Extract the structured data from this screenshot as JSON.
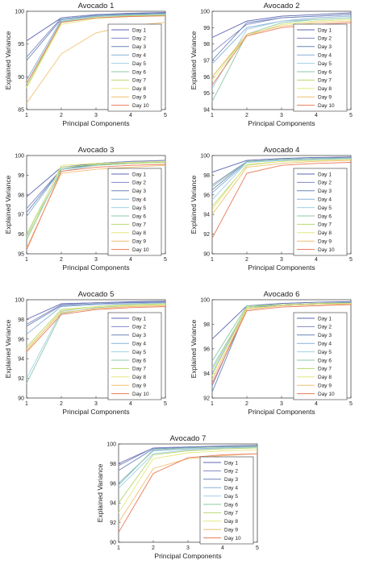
{
  "series_names": [
    "Day 1",
    "Day 2",
    "Day 3",
    "Day 4",
    "Day 5",
    "Day 6",
    "Day 7",
    "Day 8",
    "Day 9",
    "Day 10"
  ],
  "series_colors": [
    "#5c64b0",
    "#8088c4",
    "#6a86b8",
    "#88b0d8",
    "#9fd0e4",
    "#8cc8a4",
    "#b6d870",
    "#e4e880",
    "#f0c070",
    "#e87a5a"
  ],
  "chart_data": [
    {
      "type": "line",
      "title": "Avocado 1",
      "xlabel": "Principal Components",
      "ylabel": "Explained Variance",
      "x": [
        1,
        2,
        3,
        4,
        5
      ],
      "xlim": [
        1,
        5
      ],
      "ylim": [
        85,
        100
      ],
      "yticks": [
        85,
        90,
        95,
        100
      ],
      "xticks": [
        1,
        2,
        3,
        4,
        5
      ],
      "legend_position": "right",
      "series": [
        {
          "name": "Day 1",
          "values": [
            95.5,
            99.0,
            99.5,
            99.7,
            99.8
          ]
        },
        {
          "name": "Day 2",
          "values": [
            93.0,
            99.0,
            99.5,
            99.6,
            99.7
          ]
        },
        {
          "name": "Day 3",
          "values": [
            92.5,
            98.8,
            99.4,
            99.6,
            99.7
          ]
        },
        {
          "name": "Day 4",
          "values": [
            89.5,
            98.7,
            99.3,
            99.5,
            99.6
          ]
        },
        {
          "name": "Day 5",
          "values": [
            89.0,
            98.4,
            99.2,
            99.4,
            99.6
          ]
        },
        {
          "name": "Day 6",
          "values": [
            88.5,
            98.5,
            99.2,
            99.4,
            99.5
          ]
        },
        {
          "name": "Day 7",
          "values": [
            88.5,
            98.3,
            99.0,
            99.3,
            99.4
          ]
        },
        {
          "name": "Day 8",
          "values": [
            88.3,
            98.0,
            98.9,
            99.2,
            99.3
          ]
        },
        {
          "name": "Day 9",
          "values": [
            86.0,
            93.5,
            96.7,
            97.8,
            98.3
          ]
        },
        {
          "name": "Day 10",
          "values": [
            89.0,
            98.3,
            99.0,
            99.2,
            99.3
          ]
        }
      ]
    },
    {
      "type": "line",
      "title": "Avocado 2",
      "xlabel": "Principal Components",
      "ylabel": "Explained Variance",
      "x": [
        1,
        2,
        3,
        4,
        5
      ],
      "xlim": [
        1,
        5
      ],
      "ylim": [
        94,
        100
      ],
      "yticks": [
        94,
        95,
        96,
        97,
        98,
        99,
        100
      ],
      "xticks": [
        1,
        2,
        3,
        4,
        5
      ],
      "legend_position": "right",
      "series": [
        {
          "name": "Day 1",
          "values": [
            98.4,
            99.4,
            99.7,
            99.8,
            99.9
          ]
        },
        {
          "name": "Day 2",
          "values": [
            97.5,
            99.2,
            99.6,
            99.7,
            99.8
          ]
        },
        {
          "name": "Day 3",
          "values": [
            97.0,
            99.3,
            99.6,
            99.7,
            99.8
          ]
        },
        {
          "name": "Day 4",
          "values": [
            96.8,
            99.0,
            99.4,
            99.6,
            99.7
          ]
        },
        {
          "name": "Day 5",
          "values": [
            95.3,
            98.9,
            99.4,
            99.5,
            99.6
          ]
        },
        {
          "name": "Day 6",
          "values": [
            94.5,
            98.6,
            99.3,
            99.5,
            99.6
          ]
        },
        {
          "name": "Day 7",
          "values": [
            96.0,
            98.5,
            99.2,
            99.4,
            99.5
          ]
        },
        {
          "name": "Day 8",
          "values": [
            95.8,
            98.5,
            99.2,
            99.4,
            99.5
          ]
        },
        {
          "name": "Day 9",
          "values": [
            96.0,
            98.6,
            99.1,
            99.3,
            99.4
          ]
        },
        {
          "name": "Day 10",
          "values": [
            95.5,
            98.5,
            99.0,
            99.2,
            99.3
          ]
        }
      ]
    },
    {
      "type": "line",
      "title": "Avocado 3",
      "xlabel": "Principal Components",
      "ylabel": "Explained Variance",
      "x": [
        1,
        2,
        3,
        4,
        5
      ],
      "xlim": [
        1,
        5
      ],
      "ylim": [
        95,
        100
      ],
      "yticks": [
        95,
        96,
        97,
        98,
        99,
        100
      ],
      "xticks": [
        1,
        2,
        3,
        4,
        5
      ],
      "legend_position": "right",
      "series": [
        {
          "name": "Day 1",
          "values": [
            97.9,
            99.4,
            99.6,
            99.7,
            99.75
          ]
        },
        {
          "name": "Day 2",
          "values": [
            97.3,
            99.3,
            99.6,
            99.7,
            99.75
          ]
        },
        {
          "name": "Day 3",
          "values": [
            97.1,
            99.3,
            99.55,
            99.65,
            99.7
          ]
        },
        {
          "name": "Day 4",
          "values": [
            96.9,
            99.3,
            99.5,
            99.6,
            99.7
          ]
        },
        {
          "name": "Day 5",
          "values": [
            95.9,
            99.2,
            99.5,
            99.6,
            99.7
          ]
        },
        {
          "name": "Day 6",
          "values": [
            95.7,
            99.3,
            99.5,
            99.6,
            99.65
          ]
        },
        {
          "name": "Day 7",
          "values": [
            96.0,
            99.4,
            99.55,
            99.6,
            99.65
          ]
        },
        {
          "name": "Day 8",
          "values": [
            95.8,
            99.5,
            99.6,
            99.65,
            99.7
          ]
        },
        {
          "name": "Day 9",
          "values": [
            95.3,
            99.1,
            99.3,
            99.4,
            99.5
          ]
        },
        {
          "name": "Day 10",
          "values": [
            95.2,
            99.2,
            99.4,
            99.5,
            99.55
          ]
        }
      ]
    },
    {
      "type": "line",
      "title": "Avocado 4",
      "xlabel": "Principal Components",
      "ylabel": "Explained Variance",
      "x": [
        1,
        2,
        3,
        4,
        5
      ],
      "xlim": [
        1,
        5
      ],
      "ylim": [
        90,
        100
      ],
      "yticks": [
        90,
        92,
        94,
        96,
        98,
        100
      ],
      "xticks": [
        1,
        2,
        3,
        4,
        5
      ],
      "legend_position": "right",
      "series": [
        {
          "name": "Day 1",
          "values": [
            98.3,
            99.5,
            99.7,
            99.8,
            99.85
          ]
        },
        {
          "name": "Day 2",
          "values": [
            97.0,
            99.4,
            99.6,
            99.7,
            99.8
          ]
        },
        {
          "name": "Day 3",
          "values": [
            96.5,
            99.4,
            99.6,
            99.7,
            99.75
          ]
        },
        {
          "name": "Day 4",
          "values": [
            96.2,
            99.3,
            99.5,
            99.6,
            99.7
          ]
        },
        {
          "name": "Day 5",
          "values": [
            95.5,
            99.3,
            99.5,
            99.6,
            99.7
          ]
        },
        {
          "name": "Day 6",
          "values": [
            96.8,
            99.4,
            99.6,
            99.7,
            99.75
          ]
        },
        {
          "name": "Day 7",
          "values": [
            94.8,
            99.0,
            99.4,
            99.5,
            99.6
          ]
        },
        {
          "name": "Day 8",
          "values": [
            94.5,
            99.1,
            99.4,
            99.5,
            99.6
          ]
        },
        {
          "name": "Day 9",
          "values": [
            94.0,
            98.8,
            99.2,
            99.4,
            99.5
          ]
        },
        {
          "name": "Day 10",
          "values": [
            91.6,
            98.2,
            99.0,
            99.2,
            99.3
          ]
        }
      ]
    },
    {
      "type": "line",
      "title": "Avocado 5",
      "xlabel": "Principal Components",
      "ylabel": "Explained Variance",
      "x": [
        1,
        2,
        3,
        4,
        5
      ],
      "xlim": [
        1,
        5
      ],
      "ylim": [
        90,
        100
      ],
      "yticks": [
        90,
        92,
        94,
        96,
        98,
        100
      ],
      "xticks": [
        1,
        2,
        3,
        4,
        5
      ],
      "legend_position": "right",
      "series": [
        {
          "name": "Day 1",
          "values": [
            98.0,
            99.6,
            99.7,
            99.8,
            99.85
          ]
        },
        {
          "name": "Day 2",
          "values": [
            97.5,
            99.5,
            99.7,
            99.75,
            99.8
          ]
        },
        {
          "name": "Day 3",
          "values": [
            97.3,
            99.4,
            99.6,
            99.7,
            99.75
          ]
        },
        {
          "name": "Day 4",
          "values": [
            96.5,
            99.3,
            99.5,
            99.6,
            99.7
          ]
        },
        {
          "name": "Day 5",
          "values": [
            92.0,
            98.8,
            99.3,
            99.5,
            99.6
          ]
        },
        {
          "name": "Day 6",
          "values": [
            91.5,
            98.6,
            99.2,
            99.4,
            99.5
          ]
        },
        {
          "name": "Day 7",
          "values": [
            95.2,
            99.0,
            99.3,
            99.5,
            99.6
          ]
        },
        {
          "name": "Day 8",
          "values": [
            94.8,
            98.9,
            99.3,
            99.4,
            99.5
          ]
        },
        {
          "name": "Day 9",
          "values": [
            95.0,
            98.7,
            99.1,
            99.3,
            99.4
          ]
        },
        {
          "name": "Day 10",
          "values": [
            94.7,
            98.5,
            99.0,
            99.2,
            99.3
          ]
        }
      ]
    },
    {
      "type": "line",
      "title": "Avocado 6",
      "xlabel": "Principal Components",
      "ylabel": "Explained Variance",
      "x": [
        1,
        2,
        3,
        4,
        5
      ],
      "xlim": [
        1,
        5
      ],
      "ylim": [
        92,
        100
      ],
      "yticks": [
        92,
        94,
        96,
        98,
        100
      ],
      "xticks": [
        1,
        2,
        3,
        4,
        5
      ],
      "legend_position": "right",
      "series": [
        {
          "name": "Day 1",
          "values": [
            96.8,
            99.5,
            99.7,
            99.8,
            99.85
          ]
        },
        {
          "name": "Day 2",
          "values": [
            93.0,
            99.4,
            99.6,
            99.7,
            99.8
          ]
        },
        {
          "name": "Day 3",
          "values": [
            92.5,
            99.3,
            99.6,
            99.7,
            99.75
          ]
        },
        {
          "name": "Day 4",
          "values": [
            94.0,
            99.4,
            99.6,
            99.7,
            99.75
          ]
        },
        {
          "name": "Day 5",
          "values": [
            94.5,
            99.3,
            99.5,
            99.6,
            99.7
          ]
        },
        {
          "name": "Day 6",
          "values": [
            95.0,
            99.5,
            99.6,
            99.7,
            99.75
          ]
        },
        {
          "name": "Day 7",
          "values": [
            94.3,
            99.4,
            99.6,
            99.7,
            99.7
          ]
        },
        {
          "name": "Day 8",
          "values": [
            93.8,
            99.3,
            99.5,
            99.6,
            99.7
          ]
        },
        {
          "name": "Day 9",
          "values": [
            93.5,
            99.2,
            99.5,
            99.6,
            99.65
          ]
        },
        {
          "name": "Day 10",
          "values": [
            93.2,
            99.1,
            99.4,
            99.5,
            99.6
          ]
        }
      ]
    },
    {
      "type": "line",
      "title": "Avocado 7",
      "xlabel": "Principal Components",
      "ylabel": "Explained Variance",
      "x": [
        1,
        2,
        3,
        4,
        5
      ],
      "xlim": [
        1,
        5
      ],
      "ylim": [
        90,
        100
      ],
      "yticks": [
        90,
        92,
        94,
        96,
        98,
        100
      ],
      "xticks": [
        1,
        2,
        3,
        4,
        5
      ],
      "legend_position": "right",
      "series": [
        {
          "name": "Day 1",
          "values": [
            98.0,
            99.6,
            99.7,
            99.8,
            99.85
          ]
        },
        {
          "name": "Day 2",
          "values": [
            97.8,
            99.6,
            99.7,
            99.75,
            99.8
          ]
        },
        {
          "name": "Day 3",
          "values": [
            97.3,
            99.5,
            99.65,
            99.7,
            99.75
          ]
        },
        {
          "name": "Day 4",
          "values": [
            96.0,
            99.3,
            99.5,
            99.6,
            99.7
          ]
        },
        {
          "name": "Day 5",
          "values": [
            95.5,
            99.0,
            99.4,
            99.5,
            99.6
          ]
        },
        {
          "name": "Day 6",
          "values": [
            95.8,
            99.4,
            99.6,
            99.7,
            99.75
          ]
        },
        {
          "name": "Day 7",
          "values": [
            94.0,
            98.9,
            99.3,
            99.5,
            99.6
          ]
        },
        {
          "name": "Day 8",
          "values": [
            93.0,
            98.5,
            99.1,
            99.3,
            99.4
          ]
        },
        {
          "name": "Day 9",
          "values": [
            92.0,
            97.5,
            98.5,
            98.8,
            99.0
          ]
        },
        {
          "name": "Day 10",
          "values": [
            91.0,
            97.0,
            98.6,
            98.9,
            99.0
          ]
        }
      ]
    }
  ]
}
